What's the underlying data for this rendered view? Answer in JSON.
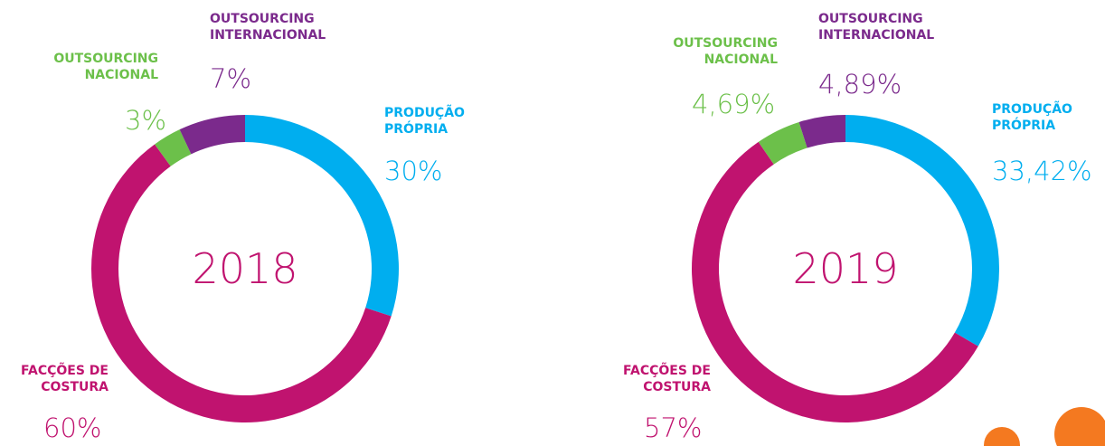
{
  "chart_data": [
    {
      "type": "pie",
      "center_label": "2018",
      "categories": [
        "PRODUÇÃO PRÓPRIA",
        "FACÇÕES DE COSTURA",
        "OUTSOURCING NACIONAL",
        "OUTSOURCING INTERNACIONAL"
      ],
      "values": [
        30,
        60,
        3,
        7
      ],
      "value_labels": [
        "30%",
        "60%",
        "3%",
        "7%"
      ],
      "colors": [
        "#00aeef",
        "#c0136f",
        "#6cc04a",
        "#7b2a8c"
      ]
    },
    {
      "type": "pie",
      "center_label": "2019",
      "categories": [
        "PRODUÇÃO PRÓPRIA",
        "FACÇÕES DE COSTURA",
        "OUTSOURCING NACIONAL",
        "OUTSOURCING INTERNACIONAL"
      ],
      "values": [
        33.42,
        57,
        4.69,
        4.89
      ],
      "value_labels": [
        "33,42%",
        "57%",
        "4,69%",
        "4,89%"
      ],
      "colors": [
        "#00aeef",
        "#c0136f",
        "#6cc04a",
        "#7b2a8c"
      ]
    }
  ]
}
